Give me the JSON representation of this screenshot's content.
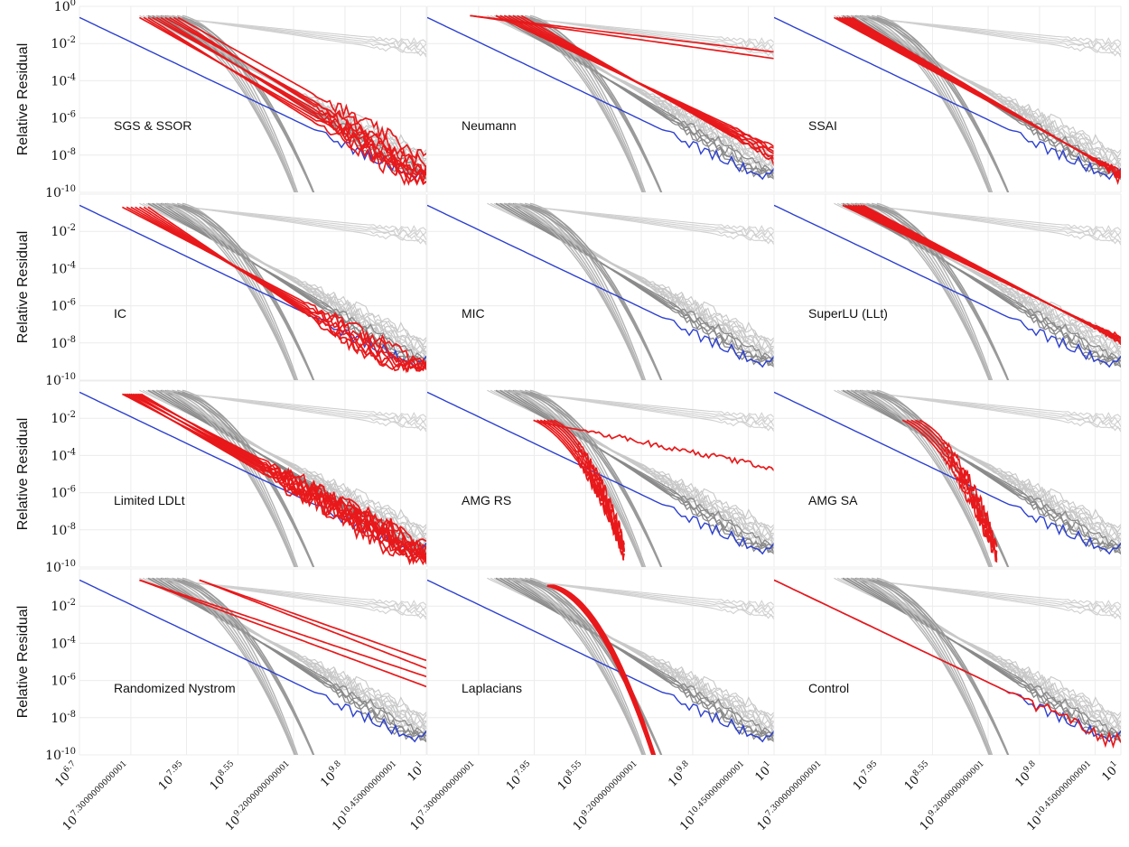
{
  "chart_data": {
    "type": "line",
    "ylabel": "Relative Residual",
    "y_scale": "log",
    "ylim_exponent": [
      -10,
      0
    ],
    "y_ticks": [
      {
        "base": "10",
        "exp": "0"
      },
      {
        "base": "10",
        "exp": "-2"
      },
      {
        "base": "10",
        "exp": "-4"
      },
      {
        "base": "10",
        "exp": "-6"
      },
      {
        "base": "10",
        "exp": "-8"
      },
      {
        "base": "10",
        "exp": "-10"
      }
    ],
    "x_scale": "log",
    "xlim_exponent": [
      6.7,
      10.75
    ],
    "x_ticks": [
      {
        "base": "10",
        "exp": "6.7",
        "pos": 6.7
      },
      {
        "base": "10",
        "exp": "7.3000000000001",
        "pos": 7.3
      },
      {
        "base": "10",
        "exp": "7.95",
        "pos": 7.95
      },
      {
        "base": "10",
        "exp": "8.55",
        "pos": 8.55
      },
      {
        "base": "10",
        "exp": "9.2000000000001",
        "pos": 9.2
      },
      {
        "base": "10",
        "exp": "9.8",
        "pos": 9.8
      },
      {
        "base": "10",
        "exp": "10.450000000001",
        "pos": 10.45
      },
      {
        "base": "10",
        "exp": "1",
        "pos": 10.75
      }
    ],
    "grid": true,
    "colors": {
      "highlight": "#e8191b",
      "reference": "#2b3fd0",
      "background_dark": "#8a8a8a",
      "background_light": "#c8c8c8"
    },
    "panels": [
      {
        "label": "SGS & SSOR",
        "kind": "fast",
        "n": 10
      },
      {
        "label": "Neumann",
        "kind": "neumann",
        "n": 9
      },
      {
        "label": "SSAI",
        "kind": "ssai",
        "n": 8
      },
      {
        "label": "IC",
        "kind": "ic",
        "n": 7
      },
      {
        "label": "MIC",
        "kind": "none",
        "n": 0
      },
      {
        "label": "SuperLU (LLt)",
        "kind": "superlu",
        "n": 9
      },
      {
        "label": "Limited LDLt",
        "kind": "ldlt",
        "n": 12
      },
      {
        "label": "AMG RS",
        "kind": "amgrs",
        "n": 8
      },
      {
        "label": "AMG SA",
        "kind": "amgsa",
        "n": 5
      },
      {
        "label": "Randomized Nystrom",
        "kind": "nystrom",
        "n": 4
      },
      {
        "label": "Laplacians",
        "kind": "laplacians",
        "n": 10
      },
      {
        "label": "Control",
        "kind": "control",
        "n": 1
      }
    ]
  }
}
